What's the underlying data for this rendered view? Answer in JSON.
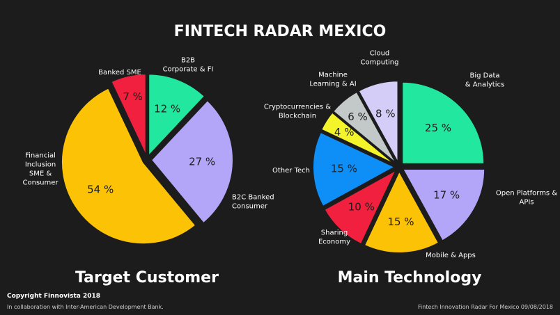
{
  "title": "FINTECH RADAR MEXICO",
  "chart_data": [
    {
      "type": "pie",
      "title": "Target Customer",
      "unit": "%",
      "slices": [
        {
          "label": [
            "B2B",
            "Corporate & FI"
          ],
          "value": 12,
          "pct_text": "12 %",
          "color": "#21e89e"
        },
        {
          "label": [
            "B2C Banked",
            "Consumer"
          ],
          "value": 27,
          "pct_text": "27 %",
          "color": "#b3a5f7"
        },
        {
          "label": [
            "Financial",
            "Inclusion",
            "SME &",
            "Consumer"
          ],
          "value": 54,
          "pct_text": "54 %",
          "color": "#fcc205"
        },
        {
          "label": [
            "Banked SME"
          ],
          "value": 7,
          "pct_text": "7 %",
          "color": "#f0203e"
        }
      ]
    },
    {
      "type": "pie",
      "title": "Main Technology",
      "unit": "%",
      "slices": [
        {
          "label": [
            "Big Data",
            "& Analytics"
          ],
          "value": 25,
          "pct_text": "25 %",
          "color": "#21e89e"
        },
        {
          "label": [
            "Open Platforms &",
            "APIs"
          ],
          "value": 17,
          "pct_text": "17 %",
          "color": "#b3a5f7"
        },
        {
          "label": [
            "Mobile & Apps"
          ],
          "value": 15,
          "pct_text": "15 %",
          "color": "#fcc205"
        },
        {
          "label": [
            "Sharing",
            "Economy"
          ],
          "value": 10,
          "pct_text": "10 %",
          "color": "#f0203e"
        },
        {
          "label": [
            "Other Tech"
          ],
          "value": 15,
          "pct_text": "15 %",
          "color": "#0d8ff7"
        },
        {
          "label": [
            "Cryptocurrencies &",
            "Blockchain"
          ],
          "value": 4,
          "pct_text": "4 %",
          "color": "#f4f42a"
        },
        {
          "label": [
            "Machine",
            "Learning & AI"
          ],
          "value": 6,
          "pct_text": "6 %",
          "color": "#c3c8c8"
        },
        {
          "label": [
            "Cloud",
            "Computing"
          ],
          "value": 8,
          "pct_text": "8 %",
          "color": "#d4cdf8"
        }
      ]
    }
  ],
  "footer": {
    "copyright": "Copyright Finnovista 2018",
    "collaboration": "In collaboration with Inter-American Development Bank.",
    "right": "Fintech Innovation Radar For Mexico 09/08/2018"
  }
}
